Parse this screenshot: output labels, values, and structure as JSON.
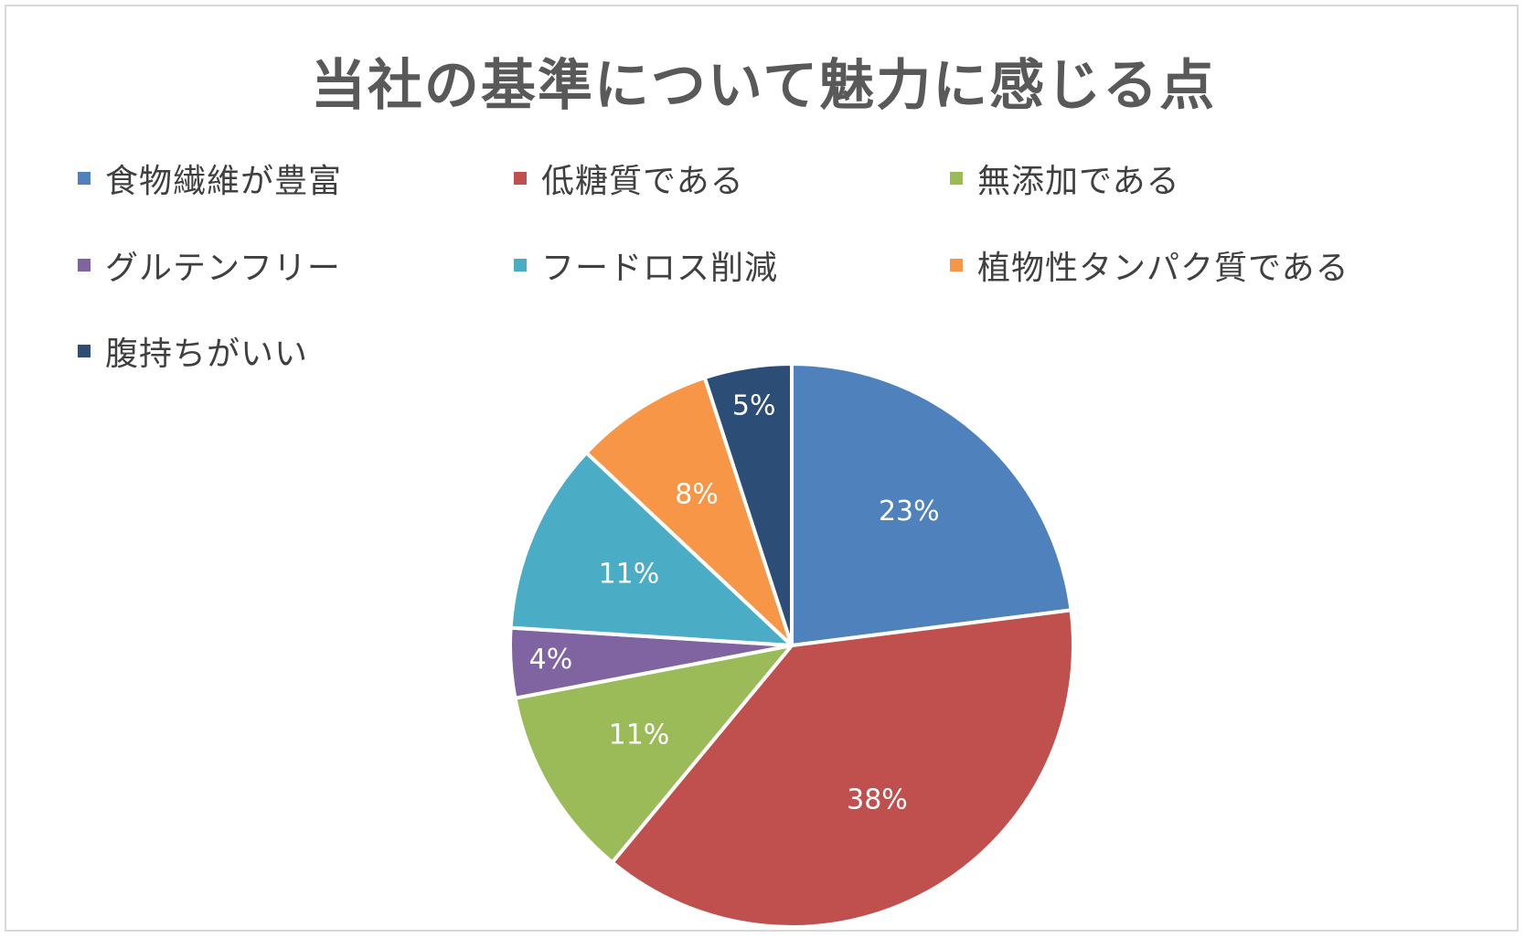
{
  "chart_data": {
    "type": "pie",
    "title": "当社の基準について魅力に感じる点",
    "legend_position": "top",
    "start_angle_deg": 0,
    "direction": "clockwise",
    "slices": [
      {
        "name": "食物繊維が豊富",
        "value": 23,
        "label": "23%",
        "color": "#4f81bd"
      },
      {
        "name": "低糖質である",
        "value": 38,
        "label": "38%",
        "color": "#c0504d"
      },
      {
        "name": "無添加である",
        "value": 11,
        "label": "11%",
        "color": "#9bbb59"
      },
      {
        "name": "グルテンフリー",
        "value": 4,
        "label": "4%",
        "color": "#8064a2"
      },
      {
        "name": "フードロス削減",
        "value": 11,
        "label": "11%",
        "color": "#4bacc6"
      },
      {
        "name": "植物性タンパク質である",
        "value": 8,
        "label": "8%",
        "color": "#f79646"
      },
      {
        "name": "腹持ちがいい",
        "value": 5,
        "label": "5%",
        "color": "#2c4d75"
      }
    ]
  }
}
